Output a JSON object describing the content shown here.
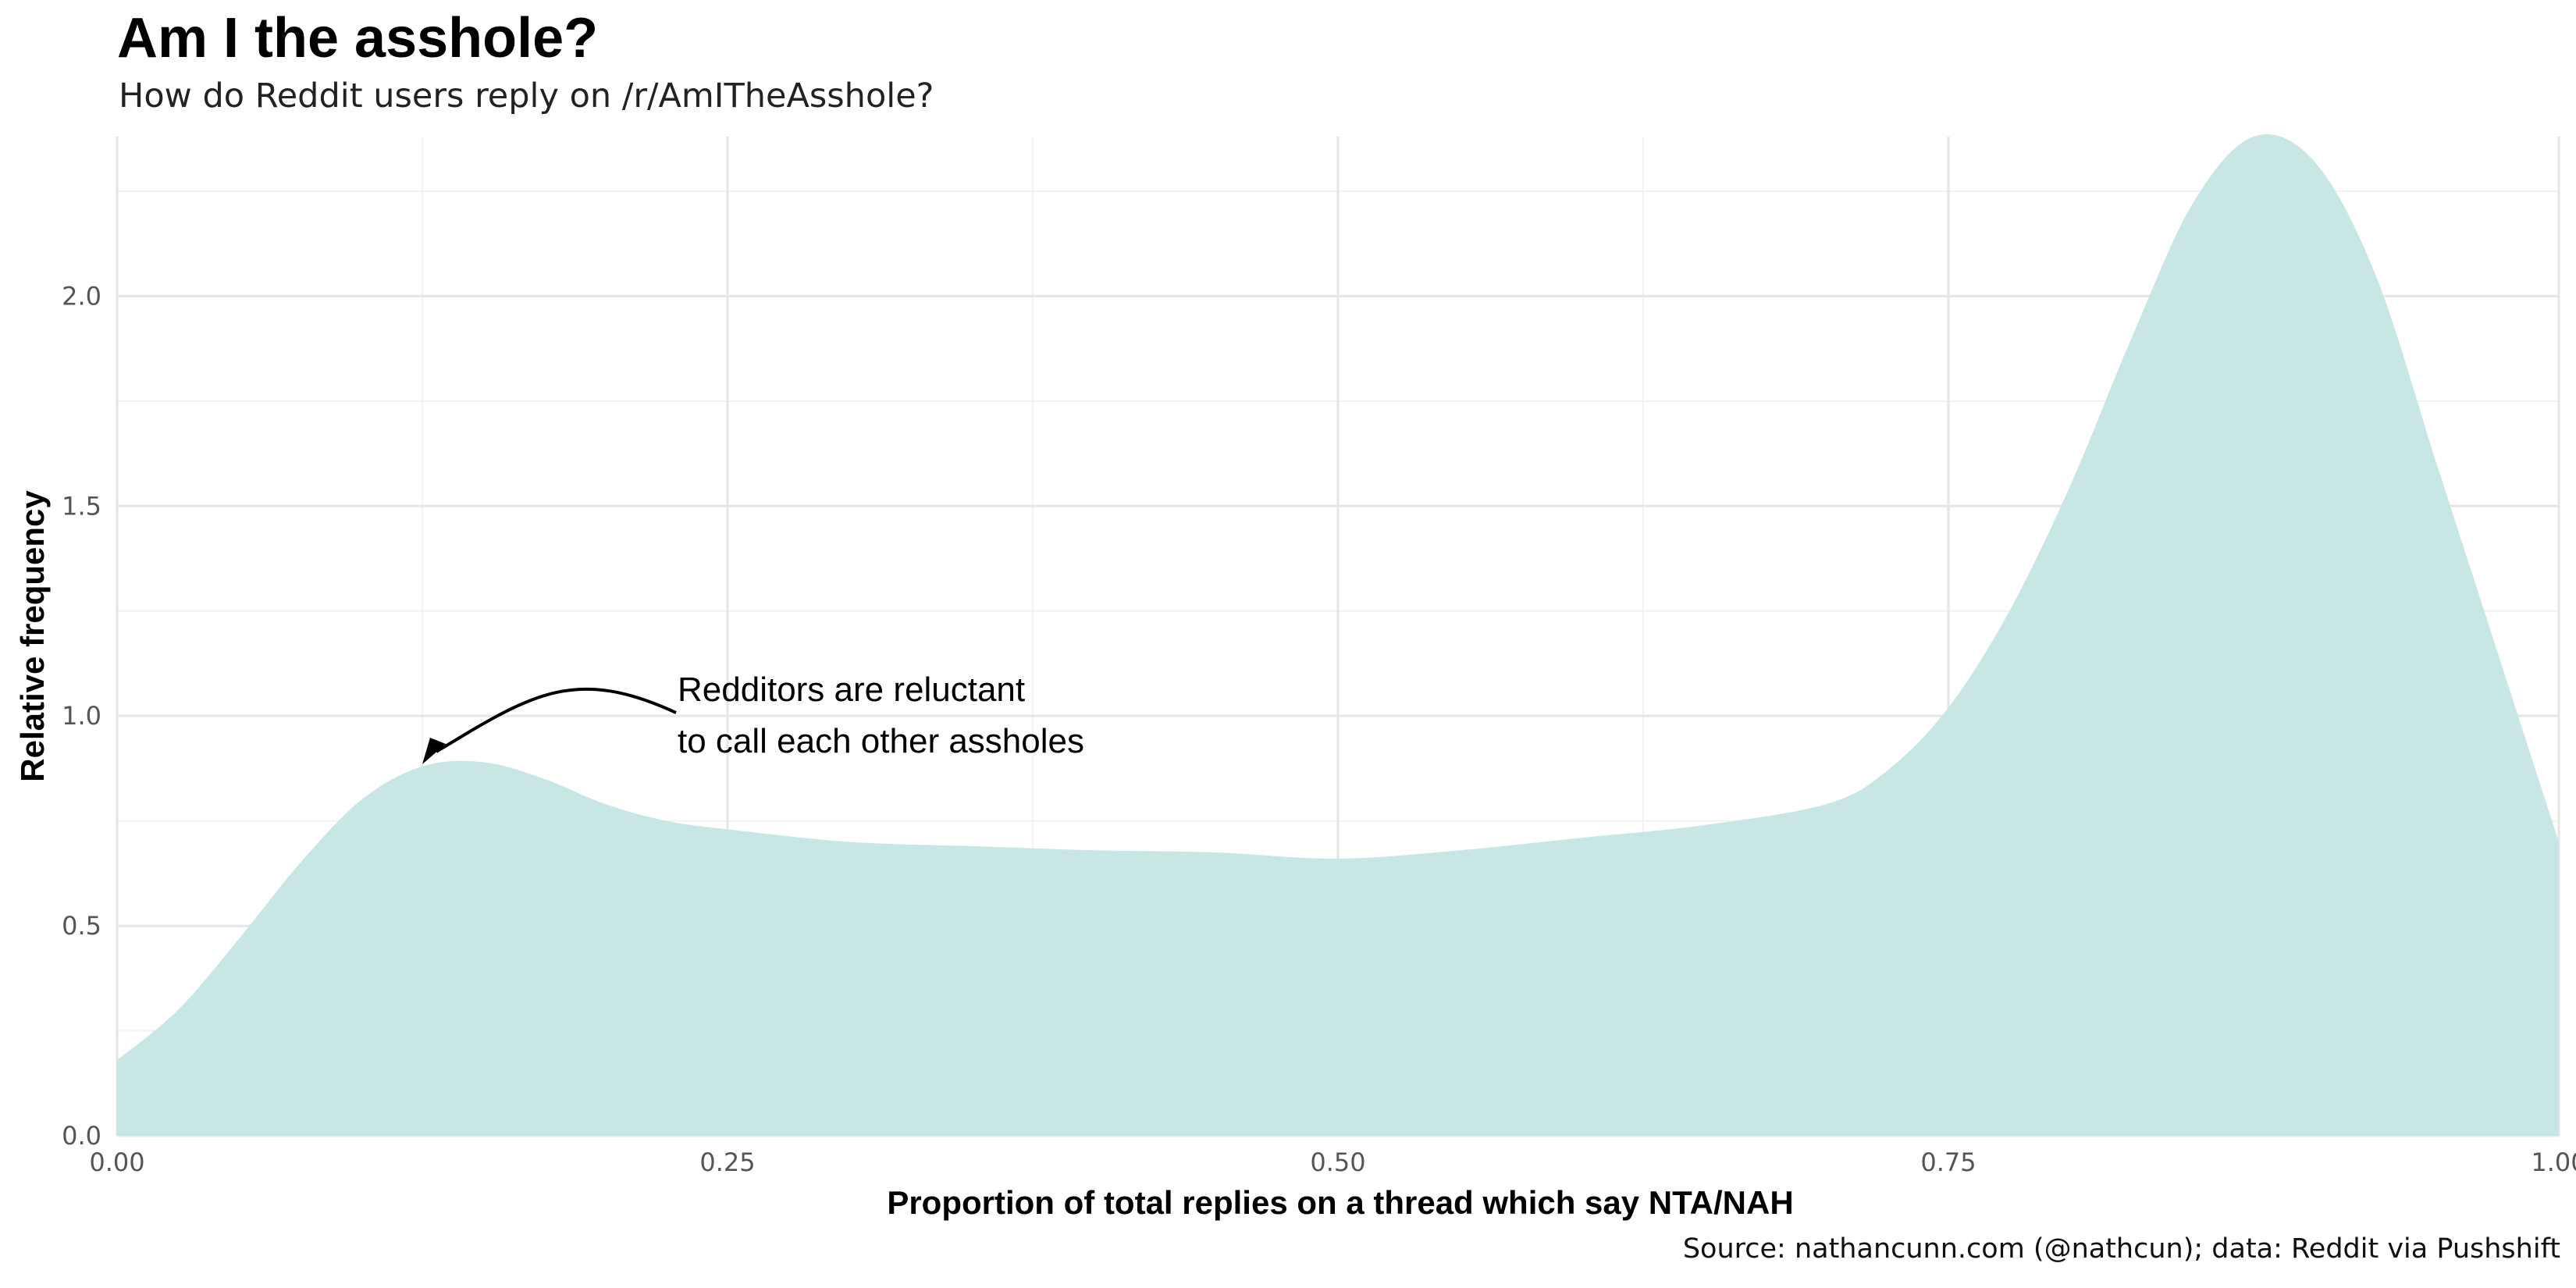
{
  "header": {
    "title": "Am I the asshole?",
    "subtitle": "How do Reddit users reply on /r/AmITheAsshole?"
  },
  "caption": "Source: nathancunn.com (@nathcun); data: Reddit via Pushshift",
  "chart_data": {
    "type": "area",
    "title": "Am I the asshole?",
    "subtitle": "How do Reddit users reply on /r/AmITheAsshole?",
    "xlabel": "Proportion of total replies on a thread which say NTA/NAH",
    "ylabel": "Relative frequency",
    "xlim": [
      0,
      1
    ],
    "ylim": [
      0,
      2.38
    ],
    "x_ticks": [
      0,
      0.25,
      0.5,
      0.75,
      1
    ],
    "x_tick_labels": [
      "0.00",
      "0.25",
      "0.50",
      "0.75",
      "1.00"
    ],
    "y_ticks": [
      0,
      0.5,
      1,
      1.5,
      2
    ],
    "y_tick_labels": [
      "0.0",
      "0.5",
      "1.0",
      "1.5",
      "2.0"
    ],
    "grid": true,
    "fill_color": "#c5e6e3",
    "series": [
      {
        "x": [
          0,
          0.025,
          0.05,
          0.075,
          0.1,
          0.125,
          0.15,
          0.175,
          0.2,
          0.225,
          0.25,
          0.3,
          0.35,
          0.4,
          0.45,
          0.5,
          0.55,
          0.6,
          0.65,
          0.7,
          0.725,
          0.75,
          0.775,
          0.8,
          0.825,
          0.85,
          0.875,
          0.9,
          0.925,
          0.95,
          0.975,
          1.0
        ],
        "y": [
          0.18,
          0.3,
          0.47,
          0.65,
          0.8,
          0.88,
          0.89,
          0.85,
          0.79,
          0.75,
          0.73,
          0.7,
          0.69,
          0.68,
          0.675,
          0.66,
          0.68,
          0.71,
          0.74,
          0.79,
          0.87,
          1.02,
          1.25,
          1.55,
          1.9,
          2.22,
          2.38,
          2.32,
          2.05,
          1.6,
          1.15,
          0.7
        ]
      }
    ],
    "annotation": {
      "text_line1": "Redditors are reluctant",
      "text_line2": "to call each other assholes",
      "points_to": {
        "x": 0.125,
        "y": 0.9
      }
    }
  }
}
